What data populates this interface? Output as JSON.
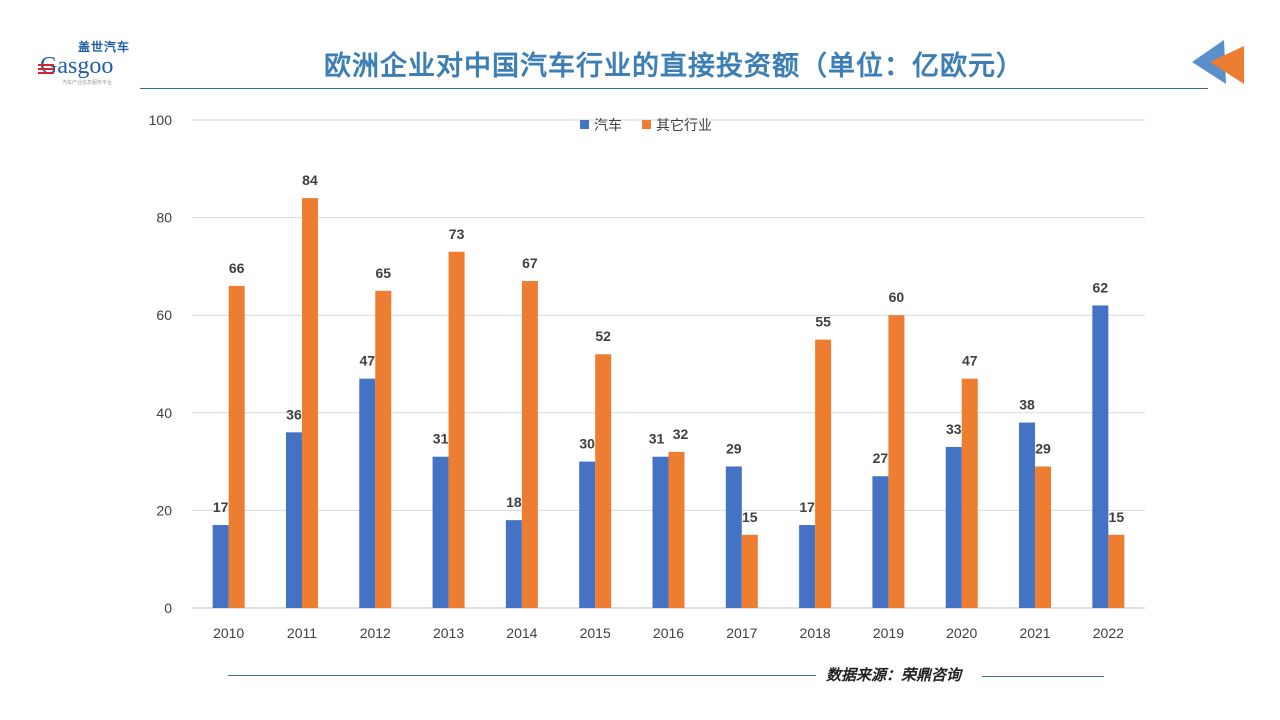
{
  "logo": {
    "cn": "盖世汽车",
    "en": "Gasgoo",
    "sub": "汽车产业信息服务平台"
  },
  "header": {
    "title": "欧洲企业对中国汽车行业的直接投资额（单位：亿欧元）"
  },
  "footer": {
    "source": "数据来源：荣鼎咨询"
  },
  "watermark": "Gasgoo 盖世汽车",
  "colors": {
    "auto": "#4472c4",
    "other": "#ed7d31",
    "title": "#3d7fb4"
  },
  "chart_data": {
    "type": "bar",
    "categories": [
      "2010",
      "2011",
      "2012",
      "2013",
      "2014",
      "2015",
      "2016",
      "2017",
      "2018",
      "2019",
      "2020",
      "2021",
      "2022"
    ],
    "series": [
      {
        "name": "汽车",
        "values": [
          17,
          36,
          47,
          31,
          18,
          30,
          31,
          29,
          17,
          27,
          33,
          38,
          62
        ]
      },
      {
        "name": "其它行业",
        "values": [
          66,
          84,
          65,
          73,
          67,
          52,
          32,
          15,
          55,
          60,
          47,
          29,
          15
        ]
      }
    ],
    "ylim": [
      0,
      100
    ],
    "yticks": [
      0,
      20,
      40,
      60,
      80,
      100
    ],
    "grid": true,
    "legend": "top-center",
    "data_labels": true
  }
}
